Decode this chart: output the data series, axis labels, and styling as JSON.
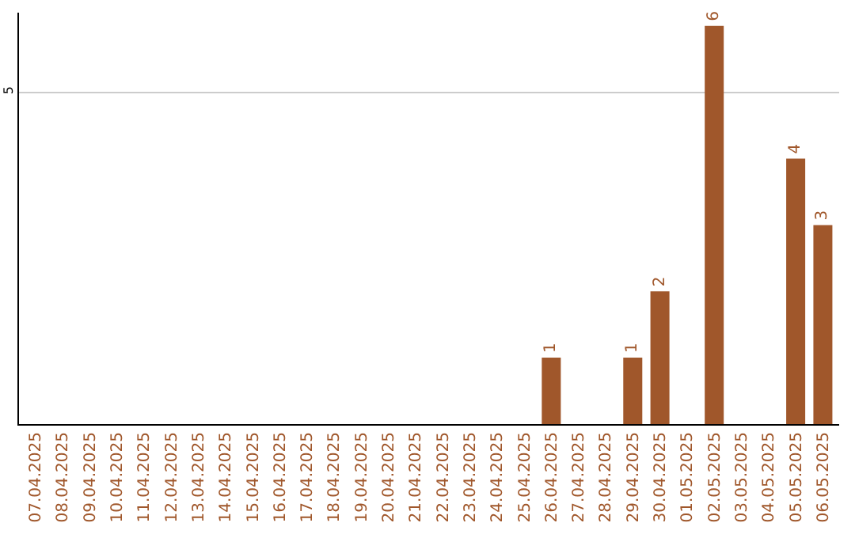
{
  "chart_data": {
    "type": "bar",
    "categories": [
      "07.04.2025",
      "08.04.2025",
      "09.04.2025",
      "10.04.2025",
      "11.04.2025",
      "12.04.2025",
      "13.04.2025",
      "14.04.2025",
      "15.04.2025",
      "16.04.2025",
      "17.04.2025",
      "18.04.2025",
      "19.04.2025",
      "20.04.2025",
      "21.04.2025",
      "22.04.2025",
      "23.04.2025",
      "24.04.2025",
      "25.04.2025",
      "26.04.2025",
      "27.04.2025",
      "28.04.2025",
      "29.04.2025",
      "30.04.2025",
      "01.05.2025",
      "02.05.2025",
      "03.05.2025",
      "04.05.2025",
      "05.05.2025",
      "06.05.2025"
    ],
    "values": [
      null,
      null,
      null,
      null,
      null,
      null,
      null,
      null,
      null,
      null,
      null,
      null,
      null,
      null,
      null,
      null,
      null,
      null,
      null,
      1,
      null,
      null,
      1,
      2,
      null,
      6,
      null,
      null,
      4,
      3
    ],
    "data_labels": true,
    "color": "#a0572b",
    "ylim": [
      0,
      6.2
    ],
    "yticks": [
      5
    ],
    "grid": "y"
  }
}
